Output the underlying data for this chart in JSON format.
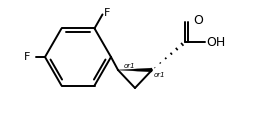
{
  "background_color": "#ffffff",
  "line_color": "#000000",
  "line_width": 1.4,
  "font_size_F": 8,
  "font_size_or1": 5.0,
  "font_size_O": 9,
  "font_size_OH": 9,
  "or1_label": "or1",
  "F_label": "F",
  "O_label": "O",
  "OH_label": "OH"
}
